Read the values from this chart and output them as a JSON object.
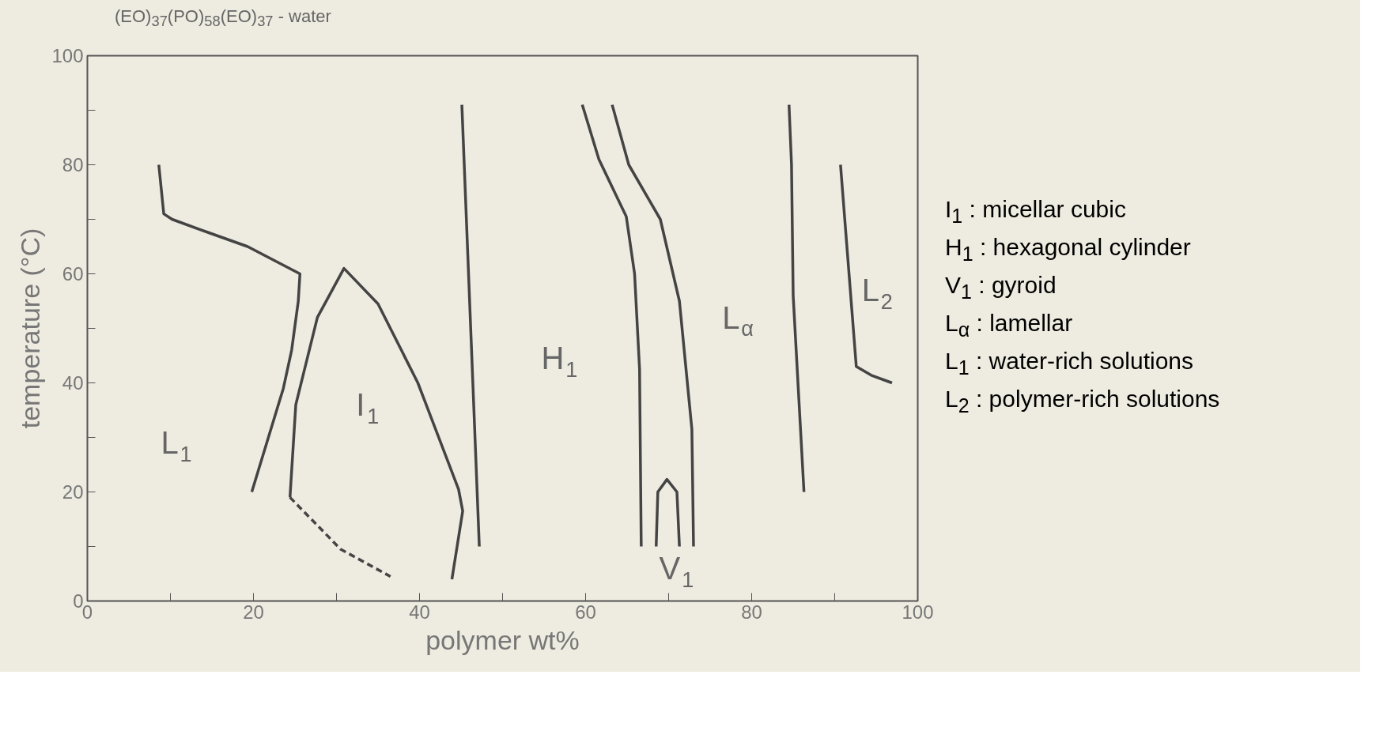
{
  "chart_data": {
    "type": "line",
    "title": "(EO)$_{37}$(PO)$_{58}$(EO)$_{37}$ - water",
    "xlabel": "polymer wt%",
    "ylabel": "temperature (°C)",
    "xlim": [
      0,
      100
    ],
    "ylim": [
      0,
      100
    ],
    "xticks": [
      0,
      {
        "value": 10,
        "label": null
      },
      20,
      {
        "value": 30,
        "label": null
      },
      40,
      {
        "value": 50,
        "label": null
      },
      60,
      {
        "value": 70,
        "label": null
      },
      80,
      {
        "value": 90,
        "label": null
      },
      100
    ],
    "yticks": [
      0,
      {
        "value": 10,
        "label": null
      },
      20,
      {
        "value": 30,
        "label": null
      },
      40,
      {
        "value": 50,
        "label": null
      },
      60,
      {
        "value": 70,
        "label": null
      },
      80,
      {
        "value": 90,
        "label": null
      },
      100
    ],
    "grid": false,
    "series": [
      {
        "color": "#444444",
        "x": [
          8.6,
          9.2,
          10.2,
          14.7,
          19.3,
          25.6,
          25.4,
          24.6,
          23.6,
          19.8
        ],
        "values": [
          80,
          71,
          70,
          67.5,
          65,
          60,
          55,
          46,
          39,
          20
        ]
      },
      {
        "color": "#444444",
        "x": [
          24.4,
          25.1,
          27.7,
          30.9,
          35,
          39.8,
          44.7,
          45.2,
          43.9
        ],
        "values": [
          19,
          36,
          52,
          61,
          54.5,
          40,
          20.5,
          16.5,
          4
        ]
      },
      {
        "color": "#444444",
        "line_style": "dashed",
        "x": [
          24.4,
          30.5,
          36.5
        ],
        "values": [
          19,
          9.5,
          4.5
        ]
      },
      {
        "color": "#444444",
        "x": [
          45.1,
          47.2
        ],
        "values": [
          91,
          10
        ]
      },
      {
        "color": "#444444",
        "x": [
          59.6,
          61.6,
          64.9,
          65.9,
          66.5,
          66.7
        ],
        "values": [
          91,
          81,
          70.5,
          60,
          42.5,
          10
        ]
      },
      {
        "color": "#444444",
        "x": [
          63.2,
          65.2,
          69,
          71.3,
          72.8,
          73
        ],
        "values": [
          91,
          80,
          70,
          55,
          31.5,
          10
        ]
      },
      {
        "color": "#444444",
        "x": [
          68.5,
          68.7,
          69.8,
          71,
          71.3
        ],
        "values": [
          10,
          20,
          22.3,
          20,
          10
        ]
      },
      {
        "color": "#444444",
        "x": [
          84.5,
          84.8,
          85,
          86.3
        ],
        "values": [
          91,
          80,
          56,
          20
        ]
      },
      {
        "color": "#444444",
        "x": [
          90.7,
          92.6,
          94.4,
          96.9
        ],
        "values": [
          80,
          43,
          41.4,
          40
        ]
      }
    ],
    "annotations": [
      "L$_{1}$",
      "I$_{1}$",
      "H$_{1}$",
      "L$_{α}$",
      "V$_{1}$",
      "L$_{2}$",
      "I$_{1}$ : micellar cubic",
      "H$_{1}$ : hexagonal cylinder",
      "V$_{1}$ : gyroid",
      "L$_{α}$ : lamellar",
      "L$_{1}$ : water-rich solutions",
      "L$_{2}$ : polymer-rich solutions"
    ]
  }
}
